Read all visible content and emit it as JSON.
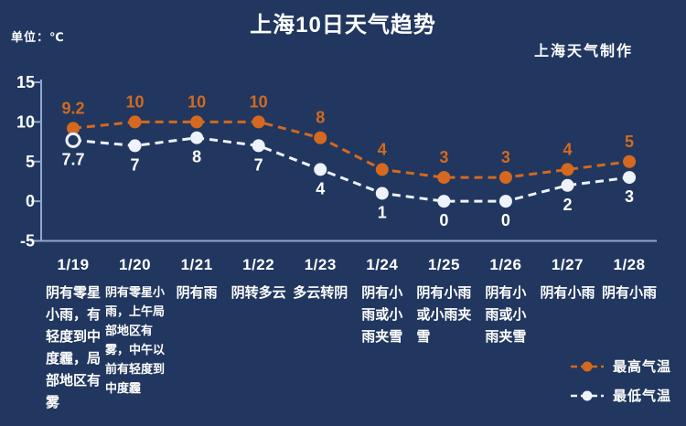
{
  "header": {
    "title": "上海10日天气趋势",
    "unit_label": "单位：℃",
    "credit": "上海天气制作"
  },
  "chart_data": {
    "type": "line",
    "title": "上海10日天气趋势",
    "ylabel": "单位：℃",
    "categories": [
      "1/19",
      "1/20",
      "1/21",
      "1/22",
      "1/23",
      "1/24",
      "1/25",
      "1/26",
      "1/27",
      "1/28"
    ],
    "series": [
      {
        "name": "最高气温",
        "values": [
          9.2,
          10,
          10,
          10,
          8,
          4,
          3,
          3,
          4,
          5
        ]
      },
      {
        "name": "最低气温",
        "values": [
          7.7,
          7,
          8,
          7,
          4,
          1,
          0,
          0,
          2,
          3
        ]
      }
    ],
    "yticks": [
      15,
      10,
      5,
      0,
      -5
    ],
    "ylim": [
      -5,
      15
    ],
    "grid": false,
    "legend_position": "bottom-right",
    "line_style": "dashed",
    "descriptions": [
      "阴有零星\n小雨，有\n轻度到中\n度霾，局\n部地区有\n雾",
      "阴有零星小\n雨，上午局\n部地区有\n雾，中午以\n前有轻度到\n中度霾",
      "阴有雨",
      "阴转多云",
      "多云转阴",
      "阴有小\n雨或小\n雨夹雪",
      "阴有小雨\n或小雨夹\n雪",
      "阴有小\n雨或小\n雨夹雪",
      "阴有小雨",
      "阴有小雨"
    ]
  },
  "colors": {
    "background": "#21375f",
    "max_temp": "#d4691f",
    "min_temp": "#eef2fb",
    "axis": "#91a7ce",
    "text": "#ffffff"
  }
}
